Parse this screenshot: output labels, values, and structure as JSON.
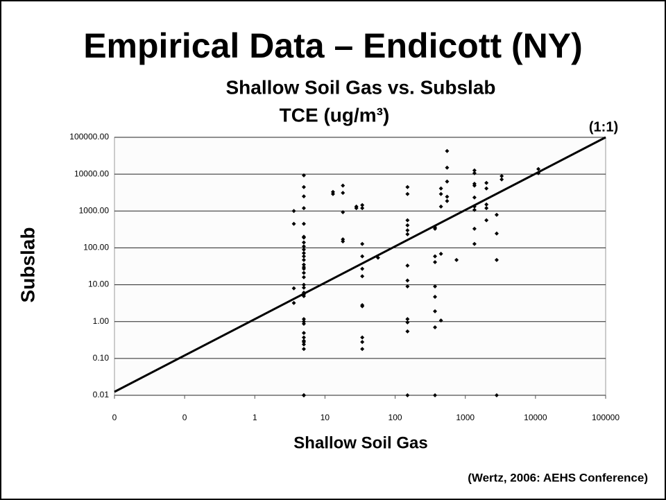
{
  "chart_data": {
    "type": "scatter",
    "title": "Empirical Data – Endicott (NY)",
    "subtitle": [
      "Shallow Soil Gas vs. Subslab",
      "TCE (ug/m³)"
    ],
    "x_label": "Shallow Soil Gas",
    "y_label": "Subslab",
    "annotation": "(1:1)",
    "source": "(Wertz, 2006: AEHS Conference)",
    "log_x": true,
    "log_y": true,
    "grid": true,
    "color": "#000000",
    "xlim": [
      0.01,
      100000
    ],
    "ylim": [
      0.01,
      100000
    ],
    "xticks": [
      {
        "value": 0.01,
        "label": "0"
      },
      {
        "value": 0.1,
        "label": "0"
      },
      1,
      10,
      100,
      1000,
      10000,
      100000
    ],
    "yticks": [
      {
        "value": 0.01,
        "label": "0.01"
      },
      {
        "value": 0.1,
        "label": "0.10"
      },
      {
        "value": 1,
        "label": "1.00"
      },
      {
        "value": 10,
        "label": "10.00"
      },
      {
        "value": 100,
        "label": "100.00"
      },
      {
        "value": 1000,
        "label": "1000.00"
      },
      {
        "value": 10000,
        "label": "10000.00"
      },
      {
        "value": 100000,
        "label": "100000.00"
      }
    ],
    "x": [
      3.6,
      3.6,
      3.6,
      3.6,
      5,
      5,
      5,
      5,
      5,
      5,
      5,
      5,
      5,
      5,
      5,
      5,
      5,
      5,
      5,
      5,
      5,
      5,
      5,
      5,
      5,
      5,
      5,
      5,
      5,
      5,
      5,
      5,
      5,
      5,
      5,
      5,
      5,
      5,
      5,
      13,
      13,
      18,
      18,
      18,
      18,
      18,
      28,
      28,
      34,
      34,
      34,
      34,
      34,
      34,
      34,
      34,
      34,
      34,
      34,
      57,
      150,
      150,
      150,
      150,
      150,
      150,
      150,
      150,
      150,
      150,
      150,
      150,
      150,
      370,
      370,
      370,
      370,
      370,
      370,
      370,
      370,
      370,
      450,
      450,
      450,
      450,
      450,
      550,
      550,
      550,
      550,
      550,
      750,
      1350,
      1350,
      1350,
      1350,
      1350,
      1350,
      1350,
      1350,
      1350,
      2000,
      2000,
      2000,
      2000,
      2000,
      2800,
      2800,
      2800,
      2800,
      3300,
      3300,
      11000,
      11000
    ],
    "y": [
      1000,
      450,
      8,
      3.2,
      9300,
      4470,
      2500,
      1200,
      450,
      190,
      140,
      110,
      90,
      72,
      59,
      47,
      35,
      27,
      21,
      16,
      10,
      8.3,
      6.1,
      4.9,
      1.17,
      0.87,
      0.49,
      0.37,
      0.28,
      0.24,
      0.18,
      0.01,
      0.01,
      200,
      30,
      5.5,
      1.0,
      0.3,
      0.01,
      3300,
      2900,
      4900,
      3100,
      930,
      170,
      150,
      1320,
      1200,
      1450,
      1200,
      128,
      59,
      27,
      17,
      2.8,
      2.6,
      0.37,
      0.28,
      0.18,
      54,
      4470,
      2900,
      560,
      410,
      300,
      235,
      33,
      13,
      9,
      1.17,
      0.95,
      0.54,
      0.01,
      360,
      330,
      59,
      41,
      9,
      4.7,
      1.9,
      0.7,
      0.01,
      4100,
      2900,
      1320,
      69,
      1.07,
      42500,
      15000,
      6300,
      2450,
      1870,
      47,
      12600,
      10600,
      5500,
      4900,
      2330,
      1320,
      1070,
      330,
      128,
      5800,
      4100,
      1500,
      1200,
      560,
      790,
      245,
      47,
      0.01,
      8900,
      7200,
      13800,
      10600
    ]
  }
}
